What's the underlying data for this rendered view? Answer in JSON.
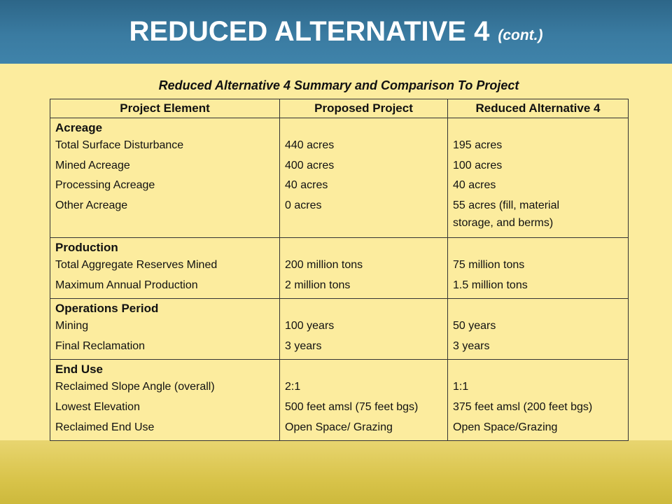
{
  "slide": {
    "title": "REDUCED ALTERNATIVE 4",
    "title_suffix": "(cont.)",
    "subtitle": "Reduced Alternative 4 Summary and Comparison To Project"
  },
  "table": {
    "headers": [
      "Project Element",
      "Proposed Project",
      "Reduced Alternative 4"
    ],
    "sections": [
      {
        "name": "Acreage",
        "rows": [
          [
            "Total Surface Disturbance",
            "440 acres",
            "195 acres"
          ],
          [
            "Mined Acreage",
            "400 acres",
            "100 acres"
          ],
          [
            "Processing Acreage",
            "40 acres",
            "40 acres"
          ],
          [
            "Other Acreage",
            "0 acres",
            "55 acres (fill, material",
            "storage, and berms)"
          ]
        ]
      },
      {
        "name": "Production",
        "rows": [
          [
            "Total Aggregate Reserves Mined",
            "200 million tons",
            "75 million tons"
          ],
          [
            "Maximum Annual Production",
            "2 million tons",
            "1.5 million tons"
          ]
        ]
      },
      {
        "name": "Operations Period",
        "rows": [
          [
            "Mining",
            "100 years",
            "50 years"
          ],
          [
            "Final Reclamation",
            "3 years",
            "3 years"
          ]
        ]
      },
      {
        "name": "End Use",
        "rows": [
          [
            "Reclaimed Slope Angle (overall)",
            "2:1",
            "1:1"
          ],
          [
            "Lowest Elevation",
            "500 feet amsl (75 feet bgs)",
            "375 feet amsl (200 feet bgs)"
          ],
          [
            "Reclaimed End Use",
            "Open Space/ Grazing",
            "Open Space/Grazing"
          ]
        ]
      }
    ]
  },
  "colors": {
    "banner": "#3a7ba1",
    "content_bg": "#fcec9e",
    "footer_band": "#d9c44b"
  }
}
